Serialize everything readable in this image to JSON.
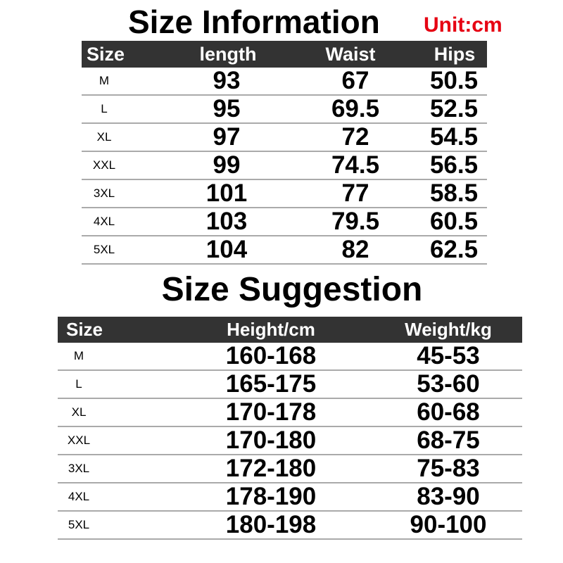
{
  "size_information": {
    "title": "Size Information",
    "unit": "Unit:cm",
    "headers": [
      "Size",
      "length",
      "Waist",
      "Hips"
    ],
    "rows": [
      [
        "M",
        "93",
        "67",
        "50.5"
      ],
      [
        "L",
        "95",
        "69.5",
        "52.5"
      ],
      [
        "XL",
        "97",
        "72",
        "54.5"
      ],
      [
        "XXL",
        "99",
        "74.5",
        "56.5"
      ],
      [
        "3XL",
        "101",
        "77",
        "58.5"
      ],
      [
        "4XL",
        "103",
        "79.5",
        "60.5"
      ],
      [
        "5XL",
        "104",
        "82",
        "62.5"
      ]
    ]
  },
  "size_suggestion": {
    "title": "Size Suggestion",
    "headers": [
      "Size",
      "Height/cm",
      "Weight/kg"
    ],
    "rows": [
      [
        "M",
        "160-168",
        "45-53"
      ],
      [
        "L",
        "165-175",
        "53-60"
      ],
      [
        "XL",
        "170-178",
        "60-68"
      ],
      [
        "XXL",
        "170-180",
        "68-75"
      ],
      [
        "3XL",
        "172-180",
        "75-83"
      ],
      [
        "4XL",
        "178-190",
        "83-90"
      ],
      [
        "5XL",
        "180-198",
        "90-100"
      ]
    ]
  },
  "colors": {
    "header_bg": "#333333",
    "unit_text": "#e60012",
    "row_divider": "#aaaaaa"
  }
}
